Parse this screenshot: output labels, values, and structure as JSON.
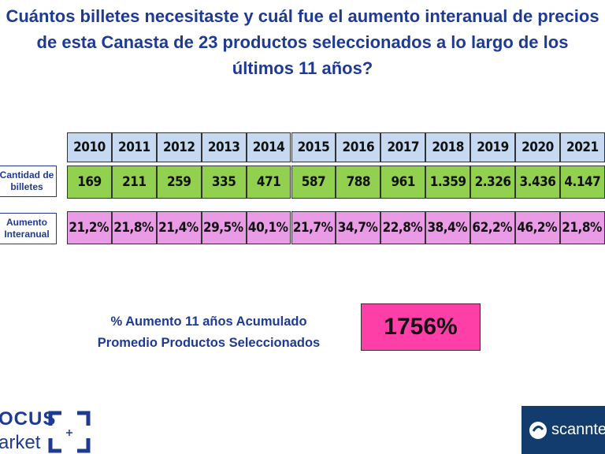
{
  "header": {
    "title": "Cuántos billetes necesitaste y cuál fue el aumento interanual de precios de esta Canasta de 23 productos seleccionados a lo largo de los últimos 11 años?"
  },
  "table": {
    "years": [
      "2010",
      "2011",
      "2012",
      "2013",
      "2014",
      "2015",
      "2016",
      "2017",
      "2018",
      "2019",
      "2020",
      "2021"
    ],
    "rows": [
      {
        "label": "Cantidad de billetes",
        "cells": [
          "169",
          "211",
          "259",
          "335",
          "471",
          "587",
          "788",
          "961",
          "1.359",
          "2.326",
          "3.436",
          "4.147"
        ]
      },
      {
        "label": "Aumento Interanual",
        "cells": [
          "21,2%",
          "21,8%",
          "21,4%",
          "29,5%",
          "40,1%",
          "21,7%",
          "34,7%",
          "22,8%",
          "38,4%",
          "62,2%",
          "46,2%",
          "21,8%"
        ]
      }
    ]
  },
  "summary": {
    "line1": "% Aumento 11 años Acumulado",
    "line2": "Promedio Productos Seleccionados",
    "value": "1756%"
  },
  "logos": {
    "left_line1": "OCUS",
    "left_line2": "arket",
    "right": "scannte"
  }
}
